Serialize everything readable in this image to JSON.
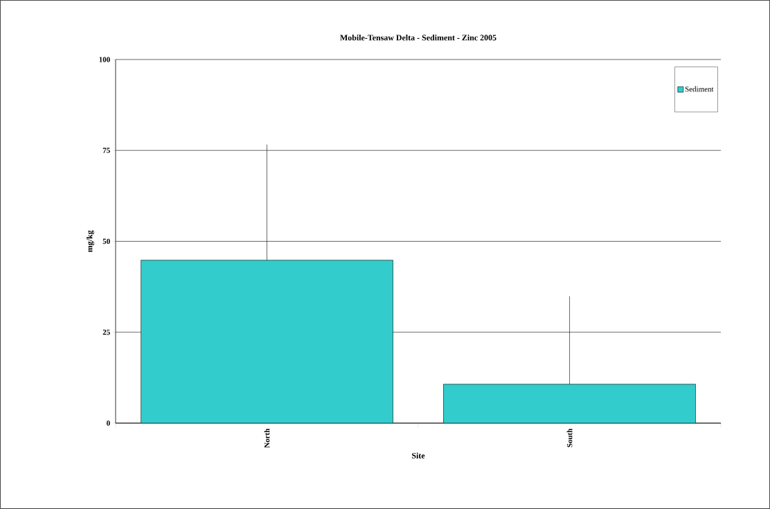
{
  "chart_data": {
    "type": "bar",
    "title": "Mobile-Tensaw Delta  - Sediment - Zinc 2005",
    "xlabel": "Site",
    "ylabel": "mg/kg",
    "categories": [
      "North",
      "South"
    ],
    "series": [
      {
        "name": "Sediment",
        "color": "#33cccc",
        "values": [
          44.8,
          10.7
        ],
        "errors": [
          [
            44.8,
            76.6
          ],
          [
            10.7,
            34.9
          ]
        ]
      }
    ],
    "ylim": [
      0,
      100
    ],
    "yticks": [
      0,
      25,
      50,
      75,
      100
    ],
    "grid": "y",
    "legend": "top right"
  }
}
